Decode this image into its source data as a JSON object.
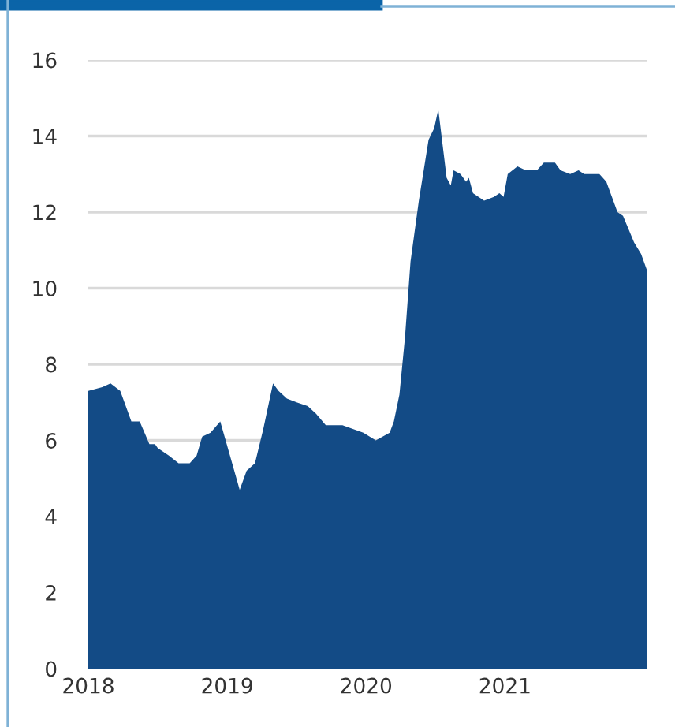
{
  "chart_data": {
    "type": "area",
    "x": [
      2018.0,
      2018.1,
      2018.16,
      2018.23,
      2018.31,
      2018.37,
      2018.44,
      2018.48,
      2018.5,
      2018.58,
      2018.65,
      2018.73,
      2018.78,
      2018.82,
      2018.88,
      2018.95,
      2019.02,
      2019.09,
      2019.14,
      2019.2,
      2019.26,
      2019.33,
      2019.37,
      2019.43,
      2019.5,
      2019.58,
      2019.64,
      2019.71,
      2019.83,
      2019.98,
      2020.07,
      2020.17,
      2020.2,
      2020.24,
      2020.28,
      2020.32,
      2020.38,
      2020.45,
      2020.49,
      2020.52,
      2020.58,
      2020.61,
      2020.63,
      2020.68,
      2020.72,
      2020.74,
      2020.77,
      2020.85,
      2020.92,
      2020.96,
      2020.99,
      2021.02,
      2021.09,
      2021.15,
      2021.23,
      2021.28,
      2021.36,
      2021.4,
      2021.47,
      2021.53,
      2021.57,
      2021.68,
      2021.73,
      2021.81,
      2021.85,
      2021.93,
      2021.98,
      2022.02
    ],
    "series": [
      {
        "color": "#134b86",
        "values": [
          7.3,
          7.4,
          7.5,
          7.3,
          6.5,
          6.5,
          5.9,
          5.9,
          5.8,
          5.6,
          5.4,
          5.4,
          5.6,
          6.1,
          6.2,
          6.5,
          5.6,
          4.7,
          5.2,
          5.4,
          6.3,
          7.5,
          7.3,
          7.1,
          7.0,
          6.9,
          6.7,
          6.4,
          6.4,
          6.2,
          6.0,
          6.2,
          6.5,
          7.2,
          8.7,
          10.7,
          12.3,
          13.9,
          14.2,
          14.7,
          12.9,
          12.7,
          13.1,
          13.0,
          12.8,
          12.9,
          12.5,
          12.3,
          12.4,
          12.5,
          12.4,
          13.0,
          13.2,
          13.1,
          13.1,
          13.3,
          13.3,
          13.1,
          13.0,
          13.1,
          13.0,
          13.0,
          12.8,
          12.0,
          11.9,
          11.2,
          10.9,
          10.5
        ]
      }
    ],
    "xlim": [
      2018,
      2022.02
    ],
    "xticks": [
      2018,
      2019,
      2020,
      2021
    ],
    "ylim": [
      0,
      16
    ],
    "yticks": [
      0,
      2,
      4,
      6,
      8,
      10,
      12,
      14,
      16
    ],
    "grid": "y"
  }
}
